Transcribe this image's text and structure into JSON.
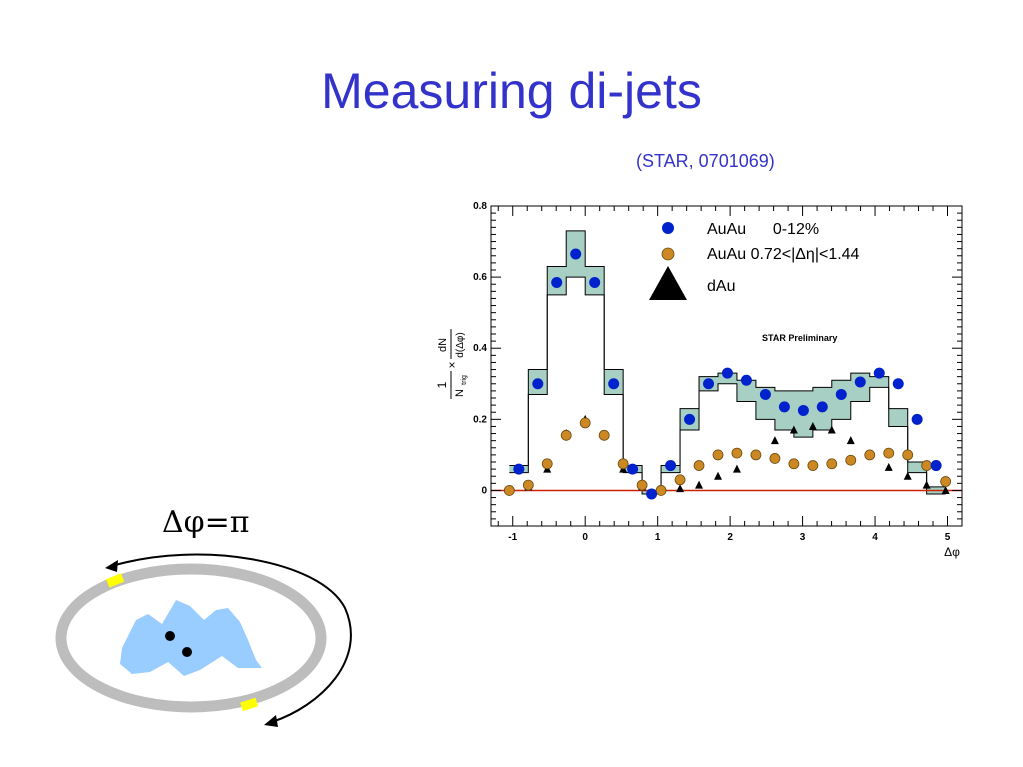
{
  "slide": {
    "title": "Measuring di-jets",
    "citation": "(STAR, 0701069)",
    "schematic_label": "Δφ=π"
  },
  "colors": {
    "title": "#3333cc",
    "auau_central": "#0022cc",
    "auau_eta": "#cc8822",
    "dau": "#000000",
    "systematic_band": "#a8cfc4",
    "zero_line": "#cc2200",
    "ring": "#bdbdbd",
    "blob": "#99ccff",
    "marker": "#ffff00"
  },
  "chart_data": {
    "type": "scatter",
    "title": "",
    "xlabel": "Δφ",
    "ylabel_numerator": "1",
    "ylabel_denominator": "N",
    "ylabel_denominator_sub": "trig",
    "ylabel_times": "×",
    "ylabel_frac_top": "dN",
    "ylabel_frac_bottom": "d(Δφ)",
    "annotation": "STAR Preliminary",
    "xlim": [
      -1.3,
      5.2
    ],
    "ylim": [
      -0.1,
      0.8
    ],
    "x_ticks": [
      {
        "value": -1,
        "label": "-1"
      },
      {
        "value": 0,
        "label": "0"
      },
      {
        "value": 1,
        "label": "1"
      },
      {
        "value": 2,
        "label": "2"
      },
      {
        "value": 3,
        "label": "3"
      },
      {
        "value": 4,
        "label": "4"
      },
      {
        "value": 5,
        "label": "5"
      }
    ],
    "y_ticks": [
      {
        "value": 0,
        "label": "0"
      },
      {
        "value": 0.2,
        "label": "0.2"
      },
      {
        "value": 0.4,
        "label": "0.4"
      },
      {
        "value": 0.6,
        "label": "0.6"
      },
      {
        "value": 0.8,
        "label": "0.8"
      }
    ],
    "bin_edges": [
      -1.047,
      -0.785,
      -0.524,
      -0.262,
      0.0,
      0.262,
      0.524,
      0.785,
      1.047,
      1.309,
      1.571,
      1.833,
      2.094,
      2.356,
      2.618,
      2.88,
      3.142,
      3.403,
      3.665,
      3.927,
      4.189,
      4.451,
      4.712,
      4.974
    ],
    "band": {
      "upper": [
        0.07,
        0.34,
        0.63,
        0.73,
        0.63,
        0.34,
        0.07,
        0.0,
        0.07,
        0.23,
        0.32,
        0.33,
        0.31,
        0.29,
        0.28,
        0.28,
        0.29,
        0.31,
        0.33,
        0.32,
        0.23,
        0.08,
        0.01
      ],
      "lower": [
        0.05,
        0.27,
        0.55,
        0.6,
        0.55,
        0.27,
        0.05,
        -0.01,
        0.05,
        0.17,
        0.28,
        0.3,
        0.25,
        0.2,
        0.17,
        0.15,
        0.17,
        0.2,
        0.25,
        0.29,
        0.18,
        0.05,
        -0.01
      ]
    },
    "series": [
      {
        "name": "AuAu      0-12%",
        "marker": "circle",
        "x": [
          -0.916,
          -0.654,
          -0.393,
          -0.131,
          0.131,
          0.393,
          0.654,
          0.916,
          1.178,
          1.44,
          1.702,
          1.963,
          2.225,
          2.487,
          2.749,
          3.011,
          3.272,
          3.534,
          3.796,
          4.058,
          4.32,
          4.581,
          4.843
        ],
        "y": [
          0.06,
          0.3,
          0.585,
          0.665,
          0.585,
          0.3,
          0.06,
          -0.01,
          0.07,
          0.2,
          0.3,
          0.33,
          0.31,
          0.27,
          0.235,
          0.225,
          0.235,
          0.27,
          0.305,
          0.33,
          0.3,
          0.2,
          0.07
        ]
      },
      {
        "name": "AuAu 0.72<|Δη|<1.44",
        "marker": "circle",
        "x": [
          -1.047,
          -0.785,
          -0.524,
          -0.262,
          0.0,
          0.262,
          0.524,
          0.785,
          1.047,
          1.309,
          1.571,
          1.833,
          2.094,
          2.356,
          2.618,
          2.88,
          3.142,
          3.403,
          3.665,
          3.927,
          4.189,
          4.451,
          4.712,
          4.974
        ],
        "y": [
          0.0,
          0.015,
          0.075,
          0.155,
          0.19,
          0.155,
          0.075,
          0.015,
          0.0,
          0.03,
          0.07,
          0.1,
          0.105,
          0.1,
          0.09,
          0.075,
          0.07,
          0.075,
          0.085,
          0.1,
          0.105,
          0.1,
          0.07,
          0.025
        ]
      },
      {
        "name": "dAu",
        "marker": "triangle",
        "x": [
          -1.047,
          -0.785,
          -0.524,
          -0.262,
          0.0,
          0.262,
          0.524,
          0.785,
          1.047,
          1.309,
          1.571,
          1.833,
          2.094,
          2.356,
          2.618,
          2.88,
          3.142,
          3.403,
          3.665,
          3.927,
          4.189,
          4.451,
          4.712,
          4.974
        ],
        "y": [
          0.0,
          0.01,
          0.06,
          0.16,
          0.2,
          0.155,
          0.06,
          0.01,
          0.0,
          0.005,
          0.015,
          0.04,
          0.06,
          0.1,
          0.14,
          0.17,
          0.18,
          0.17,
          0.14,
          0.1,
          0.065,
          0.04,
          0.015,
          0.0
        ]
      }
    ],
    "legend": {
      "placement": "top-right"
    }
  }
}
